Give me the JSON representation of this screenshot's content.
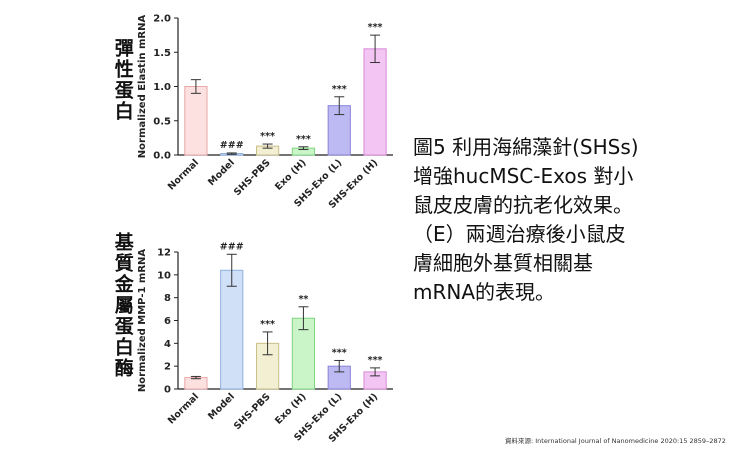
{
  "side_labels": {
    "top": "彈性蛋白",
    "bottom": "基質金屬蛋白酶"
  },
  "caption_lines": [
    "圖5 利用海綿藻針(SHSs)",
    "增強hucMSC-Exos 對小",
    "鼠皮皮膚的抗老化效果。",
    "（E）兩週治療後小鼠皮",
    "膚細胞外基質相關基",
    "mRNA的表現。"
  ],
  "source": "資料來源: International Journal of Nanomedicine 2020:15 2859–2872",
  "colors": {
    "fills": [
      "#fde0e0",
      "#cfe0f7",
      "#f3efd2",
      "#c9f5c9",
      "#bdb9f2",
      "#f3c5f3"
    ],
    "strokes": [
      "#e8a8a8",
      "#8fb2e0",
      "#c9bf88",
      "#7fd67f",
      "#8a84d8",
      "#d98ad9"
    ]
  },
  "chart_data": [
    {
      "type": "bar",
      "ylabel": "Normalized Elastin mRNA",
      "categories": [
        "Normal",
        "Model",
        "SHS-PBS",
        "Exo (H)",
        "SHS-Exo (L)",
        "SHS-Exo (H)"
      ],
      "values": [
        1.0,
        0.02,
        0.13,
        0.1,
        0.72,
        1.55
      ],
      "errors": [
        0.1,
        0.01,
        0.03,
        0.02,
        0.13,
        0.2
      ],
      "significance": [
        "",
        "###",
        "***",
        "***",
        "***",
        "***"
      ],
      "ylim": [
        0,
        2.0
      ],
      "yticks": [
        "0.0",
        "0.5",
        "1.0",
        "1.5",
        "2.0"
      ]
    },
    {
      "type": "bar",
      "ylabel": "Normalized MMP-1 mRNA",
      "categories": [
        "Normal",
        "Model",
        "SHS-PBS",
        "Exo (H)",
        "SHS-Exo (L)",
        "SHS-Exo (H)"
      ],
      "values": [
        1.0,
        10.4,
        4.0,
        6.2,
        2.0,
        1.5
      ],
      "errors": [
        0.1,
        1.4,
        1.0,
        1.0,
        0.5,
        0.35
      ],
      "significance": [
        "",
        "###",
        "***",
        "**",
        "***",
        "***"
      ],
      "ylim": [
        0,
        12
      ],
      "yticks": [
        "0",
        "2",
        "4",
        "6",
        "8",
        "10",
        "12"
      ]
    }
  ]
}
